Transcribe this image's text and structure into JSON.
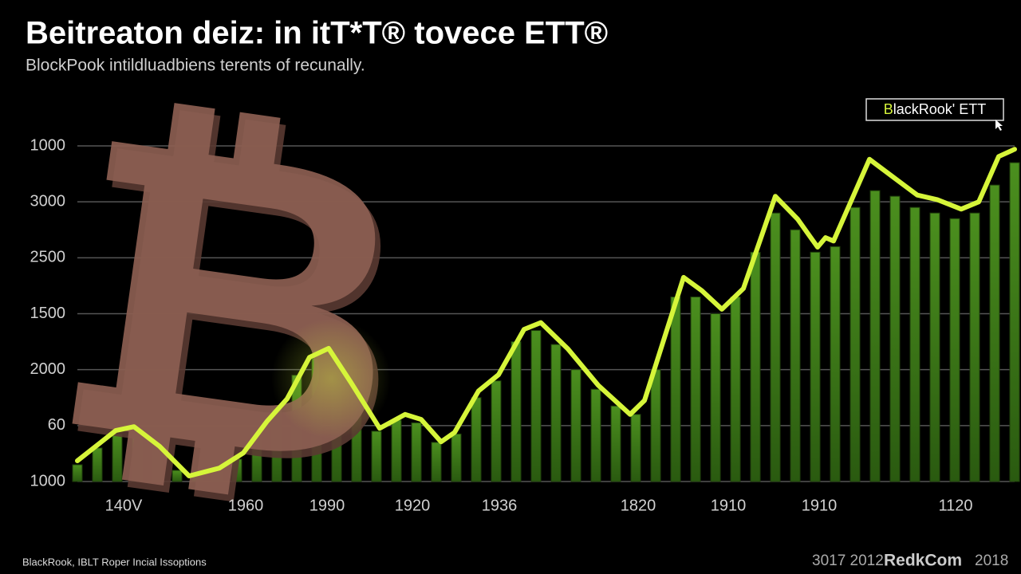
{
  "chart_data": {
    "type": "line",
    "title": "Beitreaton deiz: in itT*T® tovece ETT®",
    "subtitle": "BlockPook intildluadbiens terents of recunally.",
    "footer_left": "BlackRook, IBLT Roper Incial Issoptions",
    "footer_right": [
      "3017 2012",
      "RedkCom",
      "2018"
    ],
    "legend": "top-right",
    "grid": true,
    "xlim": [
      0,
      47
    ],
    "ylim": [
      0,
      6
    ],
    "yticks": [
      {
        "value": 6,
        "label": "1000"
      },
      {
        "value": 5,
        "label": "3000"
      },
      {
        "value": 4,
        "label": "2500"
      },
      {
        "value": 3,
        "label": "1500"
      },
      {
        "value": 2,
        "label": "2000"
      },
      {
        "value": 1,
        "label": "60"
      },
      {
        "value": 0,
        "label": "1000"
      }
    ],
    "xticks": [
      {
        "value": 2.32,
        "label": "140V"
      },
      {
        "value": 8.44,
        "label": "1960"
      },
      {
        "value": 12.52,
        "label": "1990"
      },
      {
        "value": 16.8,
        "label": "1920"
      },
      {
        "value": 21.16,
        "label": "1936"
      },
      {
        "value": 28.12,
        "label": "1820"
      },
      {
        "value": 32.64,
        "label": "1910"
      },
      {
        "value": 37.2,
        "label": "1910"
      },
      {
        "value": 44.04,
        "label": "1120"
      }
    ],
    "series": [
      {
        "name": "BlackRook' ETT",
        "type": "line",
        "color": "#d6f53a",
        "x": [
          0,
          1.92,
          2.84,
          4.12,
          5.6,
          7.12,
          8.32,
          9.52,
          10.52,
          11.64,
          12.6,
          13.72,
          15.16,
          16.44,
          17.24,
          18.24,
          18.92,
          20.12,
          21.12,
          22.4,
          23.24,
          24.6,
          26.12,
          27.72,
          28.44,
          30.4,
          31.32,
          32.32,
          33.4,
          35,
          36.12,
          37.12,
          37.52,
          37.92,
          39.72,
          40.92,
          42.12,
          43.12,
          44.32,
          45.2,
          46.2,
          47
        ],
        "values": [
          0.37,
          0.91,
          0.98,
          0.63,
          0.1,
          0.24,
          0.51,
          1.08,
          1.48,
          2.22,
          2.38,
          1.77,
          0.95,
          1.2,
          1.11,
          0.71,
          0.88,
          1.62,
          1.91,
          2.72,
          2.84,
          2.37,
          1.72,
          1.2,
          1.45,
          3.65,
          3.41,
          3.08,
          3.45,
          5.1,
          4.69,
          4.19,
          4.36,
          4.3,
          5.76,
          5.44,
          5.12,
          5.04,
          4.87,
          5.0,
          5.81,
          5.94
        ]
      },
      {
        "type": "bar",
        "color": "#3d7a18",
        "x": [
          0,
          1,
          2,
          3,
          4,
          5,
          6,
          7,
          8,
          9,
          10,
          11,
          12,
          13,
          14,
          15,
          16,
          17,
          18,
          19,
          20,
          21,
          22,
          23,
          24,
          25,
          26,
          27,
          28,
          29,
          30,
          31,
          32,
          33,
          34,
          35,
          36,
          37,
          38,
          39,
          40,
          41,
          42,
          43,
          44,
          45,
          46,
          47
        ],
        "values": [
          0.3,
          0.6,
          0.85,
          0.85,
          0.6,
          0.2,
          0.15,
          0.2,
          0.4,
          0.8,
          1.3,
          1.9,
          2.2,
          2.0,
          1.5,
          0.9,
          1.1,
          1.05,
          0.7,
          0.85,
          1.5,
          1.8,
          2.5,
          2.7,
          2.45,
          2.0,
          1.65,
          1.35,
          1.2,
          2.0,
          3.3,
          3.3,
          3.0,
          3.3,
          4.1,
          4.8,
          4.5,
          4.1,
          4.2,
          4.9,
          5.2,
          5.1,
          4.9,
          4.8,
          4.7,
          4.8,
          5.3,
          5.7
        ]
      }
    ]
  }
}
